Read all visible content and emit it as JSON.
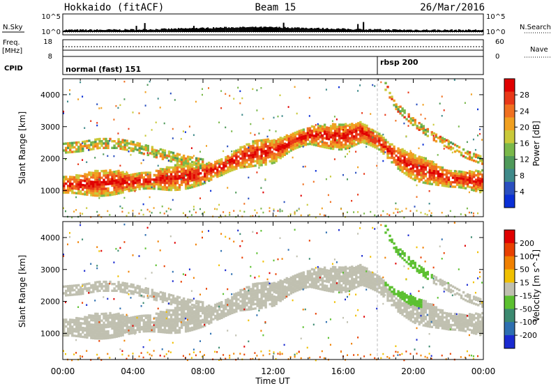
{
  "header": {
    "station": "Hokkaido (fitACF)",
    "beam": "Beam 15",
    "date": "26/Mar/2016"
  },
  "top_panels": {
    "nsky_label": "N.Sky",
    "nsearch_label": "N.Search",
    "freq_label": "Freq.",
    "freq_unit": "[MHz]",
    "nave_label": "Nave",
    "cpid_label": "CPID",
    "noise_left_ticks": [
      "10^5",
      "10^0"
    ],
    "noise_right_ticks": [
      "10^5",
      "10^0"
    ],
    "freq_ticks": [
      "18",
      "8"
    ],
    "nave_ticks": [
      "60",
      "0"
    ]
  },
  "cpid": {
    "before": "normal (fast) 151",
    "after": "rbsp 200",
    "switch_time": "18:00"
  },
  "colorbars": {
    "power": {
      "label": "Power [dB]",
      "ticks": [
        "4",
        "8",
        "12",
        "16",
        "20",
        "24",
        "28"
      ],
      "colors": [
        "#0a2fd6",
        "#2a4fbf",
        "#3f8a8a",
        "#4f9a5a",
        "#7ab84a",
        "#c9c93a",
        "#f0a020",
        "#f07020",
        "#e83818",
        "#e00000"
      ]
    },
    "velocity": {
      "label": "Velocity [m s^-1]",
      "ticks": [
        "200",
        "100",
        "50",
        "15",
        "-15",
        "-50",
        "-100",
        "-200"
      ],
      "colors": [
        "#1a2ad0",
        "#2e6fb0",
        "#3c8a70",
        "#5cc030",
        "#c0c0b0",
        "#f0c000",
        "#f08000",
        "#e84000",
        "#e00000"
      ]
    }
  },
  "chart_data": [
    {
      "type": "heatmap",
      "title": "Power",
      "ylabel": "Slant Range [km]",
      "xlabel": "Time UT",
      "x_ticks": [
        "00:00",
        "04:00",
        "08:00",
        "12:00",
        "16:00",
        "20:00",
        "00:00"
      ],
      "y_ticks": [
        "1000",
        "2000",
        "3000",
        "4000"
      ],
      "ylim": [
        180,
        4500
      ],
      "xlim_hours": [
        0,
        24
      ],
      "echo_bands": [
        {
          "label": "main band",
          "x": [
            0,
            2,
            4,
            6,
            8,
            9,
            10,
            11,
            12,
            13,
            14,
            16,
            17,
            18,
            19,
            20,
            22,
            24
          ],
          "y": [
            1150,
            1200,
            1250,
            1350,
            1500,
            1700,
            2000,
            2150,
            2200,
            2500,
            2700,
            2650,
            2800,
            2500,
            2000,
            1700,
            1350,
            1250
          ]
        },
        {
          "label": "upper band",
          "x": [
            0,
            1,
            2,
            3,
            4,
            5,
            6,
            7,
            8
          ],
          "y": [
            2300,
            2350,
            2450,
            2450,
            2350,
            2200,
            2050,
            1900,
            1800
          ]
        },
        {
          "label": "decreasing trace",
          "x": [
            18.3,
            19,
            20,
            21,
            22,
            23,
            24
          ],
          "y": [
            4300,
            3600,
            3100,
            2700,
            2400,
            2100,
            1900
          ]
        }
      ]
    },
    {
      "type": "heatmap",
      "title": "Velocity",
      "ylabel": "Slant Range [km]",
      "xlabel": "Time UT",
      "x_ticks": [
        "00:00",
        "04:00",
        "08:00",
        "12:00",
        "16:00",
        "20:00",
        "00:00"
      ],
      "y_ticks": [
        "1000",
        "2000",
        "3000",
        "4000"
      ],
      "ylim": [
        180,
        4500
      ],
      "xlim_hours": [
        0,
        24
      ]
    }
  ],
  "xlabel": "Time UT"
}
